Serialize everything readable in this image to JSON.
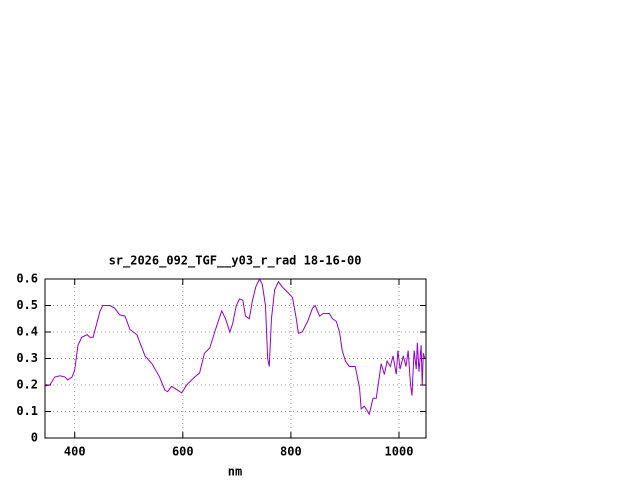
{
  "chart_data": {
    "type": "line",
    "title": "sr_2026_092_TGF__y03_r_rad 18-16-00",
    "xlabel": "nm",
    "xlim": [
      345,
      1050
    ],
    "xticks": [
      400,
      600,
      800,
      1000
    ],
    "ylim": [
      0,
      0.6
    ],
    "yticks": [
      0,
      0.1,
      0.2,
      0.3,
      0.4,
      0.5,
      0.6
    ],
    "grid": true,
    "series": [
      {
        "color": "#9400d3",
        "x": [
          345,
          354,
          363,
          373,
          382,
          387,
          395,
          400,
          406,
          413,
          423,
          428,
          434,
          447,
          452,
          465,
          474,
          483,
          493,
          502,
          515,
          530,
          543,
          557,
          567,
          572,
          579,
          591,
          598,
          607,
          622,
          631,
          640,
          650,
          659,
          672,
          679,
          687,
          692,
          699,
          705,
          711,
          716,
          723,
          729,
          735,
          742,
          747,
          753,
          757,
          760,
          764,
          770,
          777,
          784,
          794,
          803,
          810,
          814,
          821,
          831,
          840,
          845,
          853,
          860,
          871,
          877,
          884,
          890,
          895,
          901,
          908,
          915,
          919,
          927,
          930,
          936,
          945,
          952,
          958,
          967,
          973,
          978,
          984,
          989,
          995,
          998,
          1002,
          1008,
          1013,
          1017,
          1021,
          1024,
          1028,
          1032,
          1034,
          1037,
          1041,
          1043,
          1045,
          1048
        ],
        "values": [
          0.196,
          0.2,
          0.23,
          0.235,
          0.23,
          0.219,
          0.23,
          0.257,
          0.35,
          0.38,
          0.39,
          0.38,
          0.38,
          0.48,
          0.5,
          0.5,
          0.49,
          0.465,
          0.46,
          0.41,
          0.39,
          0.31,
          0.28,
          0.23,
          0.18,
          0.175,
          0.195,
          0.18,
          0.17,
          0.2,
          0.23,
          0.245,
          0.32,
          0.34,
          0.4,
          0.48,
          0.45,
          0.4,
          0.43,
          0.5,
          0.525,
          0.52,
          0.46,
          0.45,
          0.52,
          0.57,
          0.6,
          0.58,
          0.5,
          0.3,
          0.27,
          0.45,
          0.56,
          0.59,
          0.57,
          0.55,
          0.53,
          0.45,
          0.395,
          0.4,
          0.44,
          0.49,
          0.5,
          0.46,
          0.47,
          0.47,
          0.45,
          0.44,
          0.4,
          0.33,
          0.29,
          0.27,
          0.27,
          0.27,
          0.19,
          0.11,
          0.12,
          0.09,
          0.15,
          0.15,
          0.28,
          0.24,
          0.29,
          0.27,
          0.31,
          0.24,
          0.33,
          0.26,
          0.31,
          0.27,
          0.33,
          0.21,
          0.16,
          0.33,
          0.26,
          0.36,
          0.25,
          0.35,
          0.2,
          0.32,
          0.3
        ]
      }
    ]
  }
}
